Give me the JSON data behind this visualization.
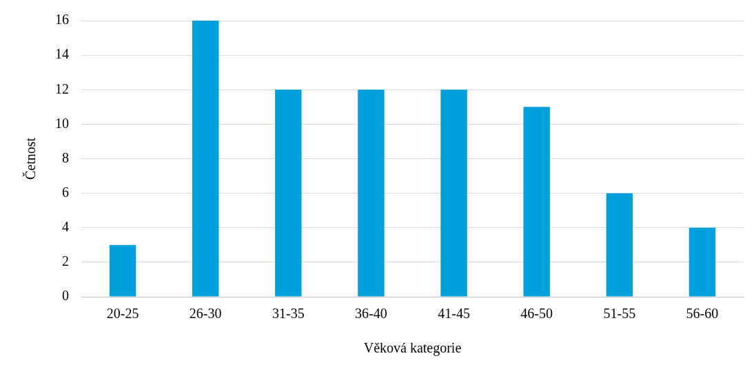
{
  "chart_data": {
    "type": "bar",
    "xlabel": "Věková kategorie",
    "ylabel": "Četnost",
    "categories": [
      "20-25",
      "26-30",
      "31-35",
      "36-40",
      "41-45",
      "46-50",
      "51-55",
      "56-60"
    ],
    "values": [
      3,
      16,
      12,
      12,
      12,
      11,
      6,
      4
    ],
    "color": "#00a0dc",
    "ylim": [
      0,
      16
    ],
    "yticks": [
      0,
      2,
      4,
      6,
      8,
      10,
      12,
      14,
      16
    ],
    "grid": "y",
    "legend": false
  }
}
